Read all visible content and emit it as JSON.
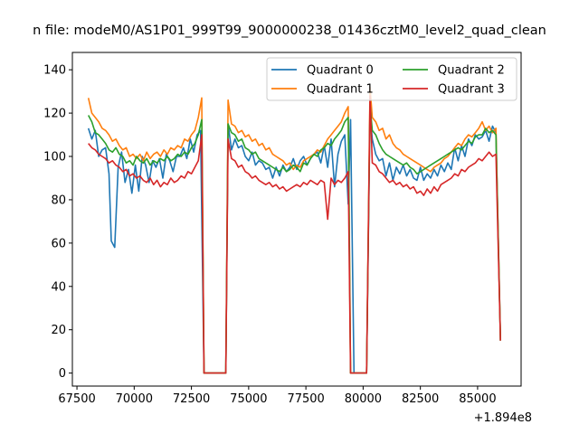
{
  "chart_data": {
    "type": "line",
    "title": "n file: modeM0/AS1P01_999T99_9000000238_01436cztM0_level2_quad_clean",
    "xlabel": "",
    "ylabel": "",
    "x_offset_label": "+1.894e8",
    "xlim": [
      67300,
      86900
    ],
    "ylim": [
      -6,
      148
    ],
    "xticks": [
      67500,
      70000,
      72500,
      75000,
      77500,
      80000,
      82500,
      85000
    ],
    "yticks": [
      0,
      20,
      40,
      60,
      80,
      100,
      120,
      140
    ],
    "legend_position": "top-right",
    "colors": {
      "q0": "#1f77b4",
      "q1": "#ff7f0e",
      "q2": "#2ca02c",
      "q3": "#d62728"
    },
    "series": [
      {
        "name": "Quadrant 0",
        "color": "#1f77b4",
        "x": [
          68000,
          68150,
          68300,
          68450,
          68600,
          68750,
          68900,
          69000,
          69150,
          69300,
          69450,
          69600,
          69750,
          69900,
          70050,
          70200,
          70350,
          70500,
          70650,
          70800,
          70950,
          71100,
          71250,
          71400,
          71550,
          71700,
          71850,
          72000,
          72150,
          72300,
          72450,
          72600,
          72750,
          72900,
          73050,
          73250,
          73500,
          73750,
          74000,
          74100,
          74250,
          74400,
          74550,
          74700,
          74850,
          75000,
          75150,
          75300,
          75450,
          75600,
          75750,
          75900,
          76050,
          76200,
          76350,
          76500,
          76650,
          76800,
          76950,
          77100,
          77250,
          77400,
          77550,
          77700,
          77850,
          78000,
          78150,
          78300,
          78450,
          78600,
          78750,
          78900,
          79050,
          79200,
          79350,
          79450,
          79600,
          79800,
          80000,
          80150,
          80300,
          80400,
          80550,
          80700,
          80850,
          81000,
          81150,
          81300,
          81450,
          81600,
          81750,
          81900,
          82050,
          82200,
          82350,
          82500,
          82650,
          82800,
          82950,
          83100,
          83250,
          83400,
          83550,
          83700,
          83850,
          84000,
          84150,
          84300,
          84450,
          84600,
          84750,
          84900,
          85050,
          85200,
          85350,
          85500,
          85650,
          85800,
          86000
        ],
        "y": [
          113,
          108,
          112,
          100,
          103,
          104,
          92,
          61,
          58,
          95,
          102,
          88,
          94,
          83,
          96,
          84,
          100,
          96,
          88,
          98,
          95,
          99,
          90,
          101,
          98,
          93,
          100,
          100,
          104,
          99,
          108,
          102,
          110,
          112,
          0,
          0,
          0,
          0,
          0,
          115,
          103,
          108,
          104,
          105,
          100,
          98,
          102,
          96,
          98,
          97,
          94,
          95,
          90,
          95,
          91,
          96,
          93,
          95,
          99,
          94,
          98,
          100,
          96,
          99,
          101,
          102,
          97,
          105,
          95,
          108,
          86,
          101,
          107,
          110,
          78,
          117,
          0,
          0,
          0,
          0,
          120,
          108,
          101,
          98,
          99,
          91,
          97,
          89,
          95,
          92,
          96,
          91,
          94,
          90,
          89,
          95,
          89,
          92,
          90,
          94,
          91,
          96,
          93,
          97,
          94,
          104,
          98,
          105,
          100,
          108,
          105,
          110,
          108,
          109,
          112,
          107,
          114,
          111,
          15
        ],
        "__generated_dense": true
      },
      {
        "name": "Quadrant 1",
        "color": "#ff7f0e",
        "x": [
          68000,
          68150,
          68300,
          68450,
          68600,
          68750,
          68900,
          69050,
          69200,
          69350,
          69500,
          69650,
          69800,
          69950,
          70100,
          70250,
          70400,
          70550,
          70700,
          70850,
          71000,
          71150,
          71300,
          71450,
          71600,
          71750,
          71900,
          72050,
          72200,
          72350,
          72500,
          72650,
          72800,
          72950,
          73050,
          73250,
          73500,
          73750,
          74000,
          74100,
          74250,
          74400,
          74550,
          74700,
          74850,
          75000,
          75150,
          75300,
          75450,
          75600,
          75750,
          75900,
          76050,
          76200,
          76350,
          76500,
          76650,
          76800,
          76950,
          77100,
          77250,
          77400,
          77550,
          77700,
          77850,
          78000,
          78150,
          78300,
          78450,
          78600,
          78750,
          78900,
          79050,
          79200,
          79350,
          79450,
          79600,
          79800,
          80000,
          80150,
          80300,
          80400,
          80550,
          80700,
          80850,
          81000,
          81150,
          81300,
          81450,
          81600,
          81750,
          81900,
          82050,
          82200,
          82350,
          82500,
          82650,
          82800,
          82950,
          83100,
          83250,
          83400,
          83550,
          83700,
          83850,
          84000,
          84150,
          84300,
          84450,
          84600,
          84750,
          84900,
          85050,
          85200,
          85350,
          85500,
          85650,
          85800,
          86000
        ],
        "y": [
          127,
          120,
          118,
          116,
          113,
          112,
          110,
          107,
          108,
          105,
          103,
          104,
          100,
          101,
          99,
          101,
          98,
          102,
          99,
          101,
          102,
          100,
          103,
          101,
          104,
          103,
          105,
          104,
          108,
          107,
          110,
          112,
          118,
          127,
          0,
          0,
          0,
          0,
          0,
          126,
          115,
          114,
          111,
          112,
          109,
          110,
          107,
          108,
          105,
          106,
          103,
          104,
          101,
          100,
          99,
          98,
          96,
          97,
          94,
          96,
          95,
          98,
          99,
          100,
          101,
          103,
          102,
          105,
          108,
          110,
          112,
          114,
          116,
          120,
          123,
          0,
          0,
          0,
          0,
          0,
          132,
          118,
          116,
          112,
          113,
          108,
          110,
          106,
          104,
          103,
          101,
          100,
          99,
          98,
          97,
          96,
          95,
          94,
          93,
          95,
          96,
          97,
          99,
          100,
          102,
          104,
          106,
          105,
          108,
          110,
          109,
          111,
          113,
          116,
          112,
          114,
          111,
          113,
          15
        ],
        "__generated_dense": true
      },
      {
        "name": "Quadrant 2",
        "color": "#2ca02c",
        "x": [
          68000,
          68150,
          68300,
          68450,
          68600,
          68750,
          68900,
          69050,
          69200,
          69350,
          69500,
          69650,
          69800,
          69950,
          70100,
          70250,
          70400,
          70550,
          70700,
          70850,
          71000,
          71150,
          71300,
          71450,
          71600,
          71750,
          71900,
          72050,
          72200,
          72350,
          72500,
          72650,
          72800,
          72950,
          73050,
          73250,
          73500,
          73750,
          74000,
          74100,
          74250,
          74400,
          74550,
          74700,
          74850,
          75000,
          75150,
          75300,
          75450,
          75600,
          75750,
          75900,
          76050,
          76200,
          76350,
          76500,
          76650,
          76800,
          76950,
          77100,
          77250,
          77400,
          77550,
          77700,
          77850,
          78000,
          78150,
          78300,
          78450,
          78600,
          78750,
          78900,
          79050,
          79200,
          79350,
          79450,
          79600,
          79800,
          80000,
          80150,
          80300,
          80400,
          80550,
          80700,
          80850,
          81000,
          81150,
          81300,
          81450,
          81600,
          81750,
          81900,
          82050,
          82200,
          82350,
          82500,
          82650,
          82800,
          82950,
          83100,
          83250,
          83400,
          83550,
          83700,
          83850,
          84000,
          84150,
          84300,
          84450,
          84600,
          84750,
          84900,
          85050,
          85200,
          85350,
          85500,
          85650,
          85800,
          86000
        ],
        "y": [
          119,
          116,
          111,
          110,
          108,
          106,
          103,
          102,
          104,
          101,
          100,
          97,
          98,
          96,
          100,
          98,
          97,
          99,
          96,
          98,
          97,
          99,
          98,
          100,
          98,
          99,
          101,
          100,
          102,
          101,
          104,
          106,
          110,
          117,
          0,
          0,
          0,
          0,
          0,
          115,
          111,
          110,
          107,
          108,
          104,
          103,
          101,
          102,
          99,
          98,
          97,
          96,
          95,
          94,
          93,
          95,
          93,
          94,
          96,
          95,
          93,
          97,
          96,
          99,
          101,
          100,
          103,
          104,
          106,
          105,
          108,
          110,
          112,
          116,
          118,
          0,
          0,
          0,
          0,
          0,
          124,
          112,
          110,
          106,
          103,
          101,
          100,
          99,
          98,
          97,
          96,
          97,
          95,
          94,
          92,
          93,
          94,
          95,
          96,
          97,
          98,
          99,
          100,
          101,
          102,
          103,
          104,
          103,
          105,
          107,
          106,
          109,
          110,
          110,
          113,
          111,
          112,
          110,
          15
        ],
        "__generated_dense": true
      },
      {
        "name": "Quadrant 3",
        "color": "#d62728",
        "x": [
          68000,
          68150,
          68300,
          68450,
          68600,
          68750,
          68900,
          69050,
          69200,
          69350,
          69500,
          69650,
          69800,
          69950,
          70100,
          70250,
          70400,
          70550,
          70700,
          70850,
          71000,
          71150,
          71300,
          71450,
          71600,
          71750,
          71900,
          72050,
          72200,
          72350,
          72500,
          72650,
          72800,
          72950,
          73050,
          73250,
          73500,
          73750,
          74000,
          74100,
          74250,
          74400,
          74550,
          74700,
          74850,
          75000,
          75150,
          75300,
          75450,
          75600,
          75750,
          75900,
          76050,
          76200,
          76350,
          76500,
          76650,
          76800,
          76950,
          77100,
          77250,
          77400,
          77550,
          77700,
          77850,
          78000,
          78150,
          78300,
          78450,
          78600,
          78750,
          78900,
          79050,
          79200,
          79350,
          79450,
          79600,
          79800,
          80000,
          80150,
          80300,
          80400,
          80550,
          80700,
          80850,
          81000,
          81150,
          81300,
          81450,
          81600,
          81750,
          81900,
          82050,
          82200,
          82350,
          82500,
          82650,
          82800,
          82950,
          83100,
          83250,
          83400,
          83550,
          83700,
          83850,
          84000,
          84150,
          84300,
          84450,
          84600,
          84750,
          84900,
          85050,
          85200,
          85350,
          85500,
          85650,
          85800,
          86000
        ],
        "y": [
          106,
          104,
          103,
          101,
          100,
          99,
          97,
          98,
          96,
          95,
          93,
          94,
          91,
          92,
          90,
          91,
          89,
          88,
          90,
          87,
          89,
          86,
          88,
          87,
          90,
          88,
          89,
          91,
          90,
          93,
          92,
          95,
          98,
          110,
          0,
          0,
          0,
          0,
          0,
          108,
          99,
          98,
          95,
          96,
          93,
          92,
          90,
          91,
          89,
          88,
          87,
          88,
          86,
          87,
          85,
          86,
          84,
          85,
          86,
          87,
          86,
          88,
          87,
          89,
          88,
          87,
          89,
          88,
          71,
          90,
          87,
          89,
          88,
          90,
          93,
          0,
          0,
          0,
          0,
          0,
          128,
          97,
          96,
          93,
          92,
          90,
          88,
          89,
          87,
          88,
          86,
          87,
          85,
          86,
          83,
          84,
          82,
          85,
          83,
          86,
          84,
          87,
          88,
          89,
          90,
          92,
          91,
          94,
          93,
          95,
          96,
          97,
          99,
          98,
          100,
          102,
          100,
          101,
          15
        ],
        "__generated_dense": true
      }
    ]
  }
}
